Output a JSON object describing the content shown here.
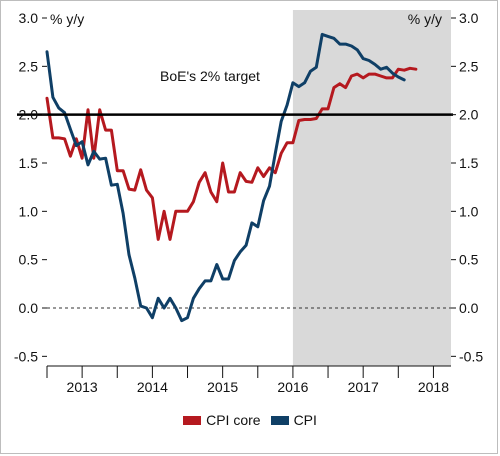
{
  "colors": {
    "cpi_core": "#b5191f",
    "cpi": "#0f3f66",
    "shade": "#d9d9d9",
    "target": "#000000"
  },
  "chart_data": {
    "type": "line",
    "title": "",
    "y_axis_left_label": "% y/y",
    "y_axis_right_label": "% y/y",
    "ylim": [
      -0.6,
      3.0
    ],
    "y_ticks": [
      "3.0",
      "2.5",
      "2.0",
      "1.5",
      "1.0",
      "0.5",
      "0.0",
      "-0.5"
    ],
    "y_tick_values": [
      3.0,
      2.5,
      2.0,
      1.5,
      1.0,
      0.5,
      0.0,
      -0.5
    ],
    "xlim": [
      2013.0,
      2018.75
    ],
    "x_ticks": [
      "2013",
      "2014",
      "2015",
      "2016",
      "2017",
      "2018"
    ],
    "x_tick_values": [
      2013.0,
      2014.0,
      2015.0,
      2016.0,
      2017.0,
      2018.0
    ],
    "shaded_period": [
      2016.5,
      2018.75
    ],
    "reference_line": {
      "y": 2.0,
      "label": "BoE's 2% target"
    },
    "zero_line": {
      "y": 0.0,
      "style": "dashed"
    },
    "legend_position": "bottom-center",
    "series": [
      {
        "name": "CPI core",
        "key": "cpi_core",
        "start": 2013.0,
        "step": 0.0833333,
        "values": [
          2.17,
          1.76,
          1.76,
          1.75,
          1.57,
          1.75,
          1.55,
          2.05,
          1.55,
          2.05,
          1.84,
          1.84,
          1.42,
          1.42,
          1.23,
          1.22,
          1.43,
          1.22,
          1.14,
          0.71,
          1.0,
          0.71,
          1.0,
          1.0,
          1.0,
          1.1,
          1.3,
          1.4,
          1.2,
          1.1,
          1.5,
          1.2,
          1.2,
          1.4,
          1.31,
          1.3,
          1.45,
          1.36,
          1.45,
          1.4,
          1.6,
          1.71,
          1.71,
          1.94,
          1.95,
          1.95,
          1.96,
          2.06,
          2.06,
          2.28,
          2.32,
          2.28,
          2.4,
          2.42,
          2.38,
          2.42,
          2.42,
          2.4,
          2.38,
          2.38,
          2.47,
          2.46,
          2.48,
          2.47
        ]
      },
      {
        "name": "CPI",
        "key": "cpi",
        "start": 2013.0,
        "step": 0.0833333,
        "values": [
          2.65,
          2.18,
          2.07,
          2.02,
          1.85,
          1.68,
          1.72,
          1.48,
          1.62,
          1.54,
          1.55,
          1.27,
          1.28,
          0.98,
          0.55,
          0.31,
          0.02,
          0.0,
          -0.1,
          0.1,
          0.0,
          0.1,
          0.0,
          -0.13,
          -0.1,
          0.1,
          0.2,
          0.28,
          0.28,
          0.45,
          0.3,
          0.3,
          0.49,
          0.58,
          0.65,
          0.88,
          0.84,
          1.11,
          1.26,
          1.6,
          1.93,
          2.1,
          2.33,
          2.29,
          2.33,
          2.45,
          2.49,
          2.83,
          2.81,
          2.79,
          2.73,
          2.73,
          2.71,
          2.67,
          2.58,
          2.56,
          2.52,
          2.47,
          2.49,
          2.43,
          2.39,
          2.36
        ]
      }
    ]
  },
  "legend": [
    {
      "label": "CPI core",
      "key": "cpi_core"
    },
    {
      "label": "CPI",
      "key": "cpi"
    }
  ]
}
